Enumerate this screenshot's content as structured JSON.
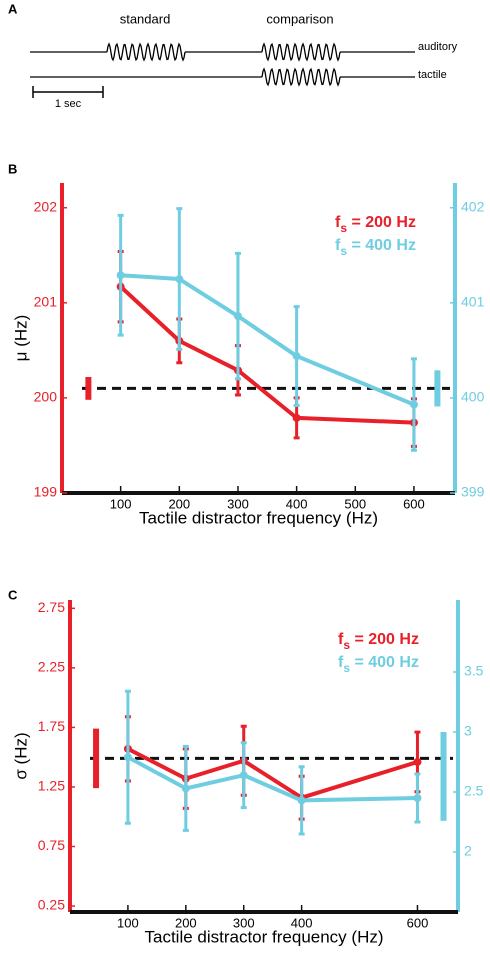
{
  "panel_a": {
    "label": "A",
    "standard": "standard",
    "comparison": "comparison",
    "auditory": "auditory",
    "tactile": "tactile",
    "scale": "1 sec"
  },
  "chart_data": [
    {
      "type": "line",
      "panel": "B",
      "xlabel": "Tactile distractor frequency (Hz)",
      "ylabel": "μ (Hz)",
      "x": [
        100,
        200,
        300,
        400,
        600
      ],
      "xlim": [
        0,
        670
      ],
      "xticks": [
        100,
        200,
        300,
        400,
        500,
        600
      ],
      "ylim": [
        199,
        202.26
      ],
      "yticks": [
        199,
        200,
        201,
        202
      ],
      "y2lim": [
        399,
        402.26
      ],
      "y2ticks": [
        399,
        400,
        401,
        402
      ],
      "series": [
        {
          "name": {
            "base": "f",
            "sub": "s",
            "rest": " = 200 Hz"
          },
          "color": "#e8202a",
          "axis": "y",
          "values": [
            201.17,
            200.6,
            200.29,
            199.79,
            199.74
          ],
          "errors": [
            0.37,
            0.23,
            0.26,
            0.21,
            0.25
          ]
        },
        {
          "name": {
            "base": "f",
            "sub": "s",
            "rest": " = 400 Hz"
          },
          "color": "#6ecde0",
          "axis": "y2",
          "values": [
            401.29,
            401.25,
            400.86,
            400.44,
            399.93
          ],
          "errors": [
            0.63,
            0.74,
            0.66,
            0.52,
            0.48
          ]
        }
      ],
      "reference_line": 200.1,
      "reference_markers": [
        {
          "axis": "y",
          "x": 45,
          "value": 200.1,
          "error": 0.12
        },
        {
          "axis": "y2",
          "x": 640,
          "value": 400.1,
          "error": 0.19
        }
      ]
    },
    {
      "type": "line",
      "panel": "C",
      "xlabel": "Tactile distractor frequency (Hz)",
      "ylabel": "σ (Hz)",
      "x": [
        100,
        200,
        300,
        400,
        600
      ],
      "xlim": [
        0,
        670
      ],
      "xticks": [
        100,
        200,
        300,
        400,
        600
      ],
      "ylim": [
        0.2,
        2.82
      ],
      "yticks": [
        0.25,
        0.75,
        1.25,
        1.75,
        2.25,
        2.75
      ],
      "y2lim": [
        1.5,
        4.1
      ],
      "y2ticks": [
        2,
        2.5,
        3,
        3.5
      ],
      "series": [
        {
          "name": {
            "base": "f",
            "sub": "s",
            "rest": " = 200 Hz"
          },
          "color": "#e8202a",
          "axis": "y",
          "values": [
            1.57,
            1.32,
            1.47,
            1.16,
            1.46
          ],
          "errors": [
            0.27,
            0.25,
            0.29,
            0.18,
            0.25
          ]
        },
        {
          "name": {
            "base": "f",
            "sub": "s",
            "rest": " = 400 Hz"
          },
          "color": "#6ecde0",
          "axis": "y2",
          "values": [
            2.79,
            2.53,
            2.64,
            2.43,
            2.45
          ],
          "errors": [
            0.55,
            0.35,
            0.27,
            0.28,
            0.2
          ]
        }
      ],
      "reference_line": 1.49,
      "reference_markers": [
        {
          "axis": "y",
          "x": 45,
          "value": 1.49,
          "error": 0.25
        },
        {
          "axis": "y2",
          "x": 645,
          "value": 2.63,
          "error": 0.37
        }
      ]
    }
  ]
}
